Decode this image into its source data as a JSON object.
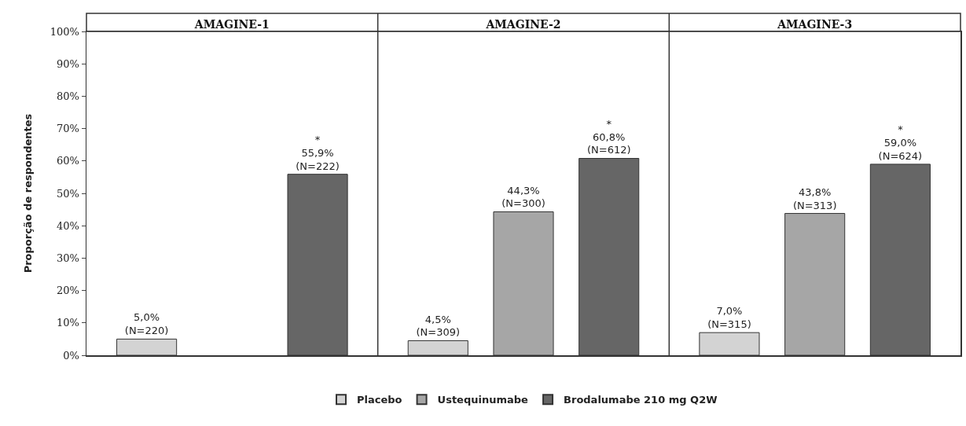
{
  "chart_data": {
    "type": "bar",
    "ylabel": "Proporção de respondentes",
    "categories": [
      "AMAGINE-1",
      "AMAGINE-2",
      "AMAGINE-3"
    ],
    "ylim": [
      0,
      100
    ],
    "yticks": [
      {
        "value": 0,
        "label": "0%"
      },
      {
        "value": 10,
        "label": "10%"
      },
      {
        "value": 20,
        "label": "20%"
      },
      {
        "value": 30,
        "label": "30%"
      },
      {
        "value": 40,
        "label": "40%"
      },
      {
        "value": 50,
        "label": "50%"
      },
      {
        "value": 60,
        "label": "60%"
      },
      {
        "value": 70,
        "label": "70%"
      },
      {
        "value": 80,
        "label": "80%"
      },
      {
        "value": 90,
        "label": "90%"
      },
      {
        "value": 100,
        "label": "100%"
      }
    ],
    "legend": "bottom",
    "series": [
      {
        "name": "Placebo",
        "color": "#d3d3d3",
        "values": [
          5.0,
          4.5,
          7.0
        ],
        "value_labels": [
          "5,0%\n(N=220)",
          "4,5%\n(N=309)",
          "7,0%\n(N=315)"
        ]
      },
      {
        "name": "Ustequinumabe",
        "color": "#a6a6a6",
        "values": [
          null,
          44.3,
          43.8
        ],
        "value_labels": [
          null,
          "44,3%\n(N=300)",
          "43,8%\n(N=313)"
        ]
      },
      {
        "name": "Brodalumabe 210 mg Q2W",
        "color": "#666666",
        "values": [
          55.9,
          60.8,
          59.0
        ],
        "value_labels": [
          "*\n55,9%\n(N=222)",
          "*\n60,8%\n(N=612)",
          "*\n59,0%\n(N=624)"
        ]
      }
    ]
  }
}
